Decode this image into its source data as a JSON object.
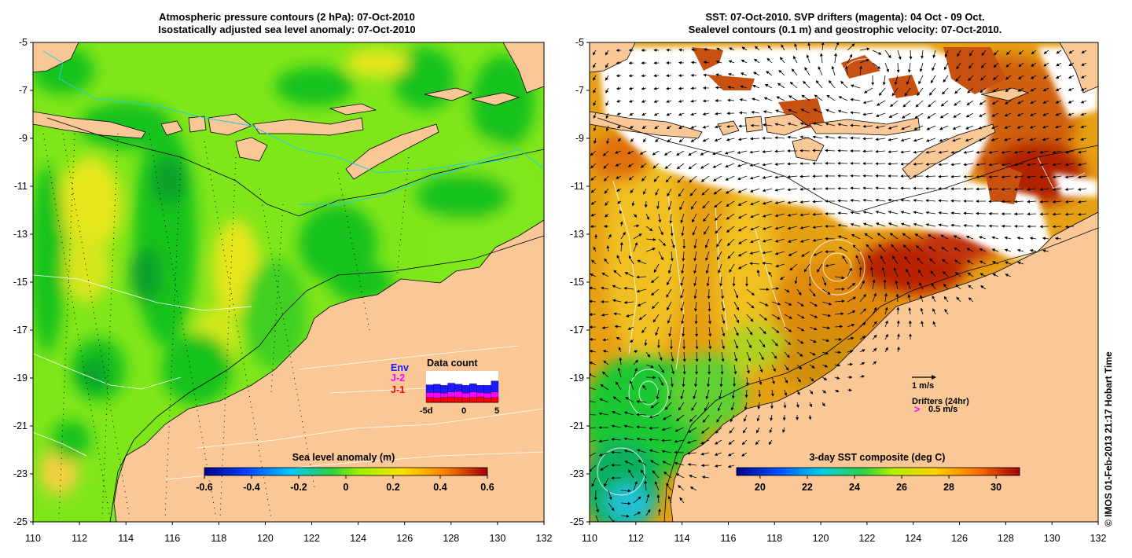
{
  "left_panel": {
    "title_line1": "Atmospheric pressure contours (2 hPa): 07-Oct-2010",
    "title_line2": "Isostatically adjusted sea level anomaly: 07-Oct-2010",
    "y_ticks": [
      "-5",
      "-7",
      "-9",
      "-11",
      "-13",
      "-15",
      "-17",
      "-19",
      "-21",
      "-23",
      "-25"
    ],
    "x_ticks": [
      "110",
      "112",
      "114",
      "116",
      "118",
      "120",
      "122",
      "124",
      "126",
      "128",
      "130",
      "132"
    ],
    "colorbar": {
      "label": "Sea level anomaly (m)",
      "ticks": [
        "-0.6",
        "-0.4",
        "-0.2",
        "0",
        "0.2",
        "0.4",
        "0.6"
      ]
    },
    "inset": {
      "title": "Data count",
      "legend": [
        {
          "name": "Env",
          "color": "#1a1aff"
        },
        {
          "name": "J-2",
          "color": "#ff00ff"
        },
        {
          "name": "J-1",
          "color": "#ff0000"
        }
      ],
      "x_ticks": [
        "-5d",
        "0",
        "5"
      ]
    }
  },
  "right_panel": {
    "title_line1": "SST: 07-Oct-2010. SVP drifters (magenta): 04 Oct - 09 Oct.",
    "title_line2": "Sealevel contours (0.1 m) and geostrophic velocity: 07-Oct-2010.",
    "y_ticks": [
      "-5",
      "-7",
      "-9",
      "-11",
      "-13",
      "-15",
      "-17",
      "-19",
      "-21",
      "-23",
      "-25"
    ],
    "x_ticks": [
      "110",
      "112",
      "114",
      "116",
      "118",
      "120",
      "122",
      "124",
      "126",
      "128",
      "130",
      "132"
    ],
    "colorbar": {
      "label": "3-day SST composite (deg C)",
      "ticks": [
        "20",
        "22",
        "24",
        "26",
        "28",
        "30"
      ]
    },
    "velocity_scale_label": "1 m/s",
    "drifters_label": "Drifters (24hr)",
    "drifter_scale_label": "0.5 m/s",
    "drifter_marker": ">"
  },
  "copyright": "© IMOS 01-Feb-2013 21:17 Hobart Time",
  "colors": {
    "land": "#fac896",
    "sea_mid": "#7fe61a",
    "sea_low": "#16c21e",
    "sea_high": "#e6e61a",
    "sst_warm": "#e6a014",
    "sst_hot": "#b41e00",
    "sst_cool": "#1ec832",
    "no_data": "#ffffff"
  }
}
